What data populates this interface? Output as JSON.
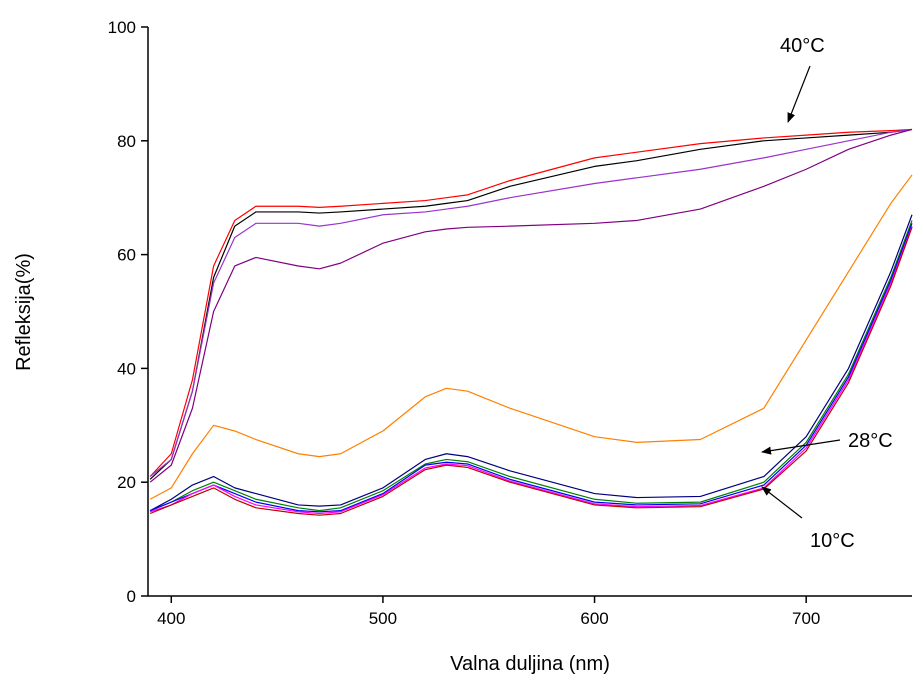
{
  "chart_data": {
    "type": "line",
    "x_label": "Valna duljina (nm)",
    "y_label": "Refleksija(%)",
    "xlim": [
      389,
      750
    ],
    "xticks": [
      400,
      500,
      600,
      700
    ],
    "ylim": [
      0,
      100
    ],
    "yticks": [
      0,
      20,
      40,
      60,
      80,
      100
    ],
    "grid": false,
    "annotations": [
      "40°C",
      "28°C",
      "10°C"
    ],
    "x": [
      390,
      400,
      410,
      420,
      430,
      440,
      460,
      470,
      480,
      500,
      520,
      530,
      540,
      560,
      600,
      620,
      650,
      680,
      700,
      720,
      740,
      750
    ],
    "series": [
      {
        "color": "#ff0000",
        "values": [
          21,
          25,
          38,
          58,
          66,
          68.5,
          68.5,
          68.3,
          68.5,
          69,
          69.5,
          70,
          70.5,
          73,
          77,
          78,
          79.5,
          80.5,
          81,
          81.5,
          81.8,
          82
        ]
      },
      {
        "color": "#000000",
        "values": [
          20.5,
          24,
          36,
          56,
          65,
          67.5,
          67.5,
          67.3,
          67.5,
          68,
          68.5,
          69,
          69.5,
          72,
          75.5,
          76.5,
          78.5,
          80,
          80.5,
          81,
          81.5,
          82
        ]
      },
      {
        "color": "#9933cc",
        "values": [
          21,
          24,
          36,
          55,
          63,
          65.5,
          65.5,
          65,
          65.5,
          67,
          67.5,
          68,
          68.5,
          70,
          72.5,
          73.5,
          75,
          77,
          78.5,
          80,
          81.5,
          82
        ]
      },
      {
        "color": "#800080",
        "values": [
          20,
          23,
          33,
          50,
          58,
          59.5,
          58,
          57.5,
          58.5,
          62,
          64,
          64.5,
          64.8,
          65,
          65.5,
          66,
          68,
          72,
          75,
          78.5,
          81,
          82
        ]
      },
      {
        "color": "#ff8000",
        "values": [
          17,
          19,
          25,
          30,
          29,
          27.5,
          25,
          24.5,
          25,
          29,
          35,
          36.5,
          36,
          33,
          28,
          27,
          27.5,
          33,
          45,
          57,
          69,
          74
        ]
      },
      {
        "color": "#000080",
        "values": [
          15,
          17,
          19.5,
          21,
          19,
          18,
          16,
          15.8,
          16,
          19,
          24,
          25,
          24.5,
          22,
          18,
          17.3,
          17.5,
          21,
          28,
          40,
          57,
          67
        ]
      },
      {
        "color": "#008000",
        "values": [
          15,
          16.5,
          18.5,
          20,
          18.5,
          17,
          15.5,
          15,
          15.5,
          18.5,
          23.2,
          24,
          23.6,
          21,
          17,
          16.3,
          16.5,
          20,
          27,
          39,
          56,
          66
        ]
      },
      {
        "color": "#0000ff",
        "values": [
          15,
          16.5,
          18,
          19.5,
          18,
          16.5,
          15,
          14.8,
          15,
          18,
          23,
          23.5,
          23.2,
          20.5,
          16.5,
          16,
          16.2,
          19.5,
          26.5,
          38.5,
          55.5,
          65.5
        ]
      },
      {
        "color": "#ff00ff",
        "values": [
          14.8,
          16,
          18,
          19.5,
          17.5,
          16,
          14.8,
          14.5,
          14.8,
          17.8,
          22.5,
          23.2,
          22.9,
          20.2,
          16.2,
          15.7,
          15.9,
          19,
          26,
          38,
          55,
          65
        ]
      },
      {
        "color": "#c00000",
        "values": [
          14.5,
          16,
          17.5,
          19,
          17,
          15.5,
          14.5,
          14.2,
          14.5,
          17.5,
          22.2,
          23,
          22.6,
          20,
          16,
          15.5,
          15.7,
          18.8,
          25.5,
          37.5,
          54.5,
          64.8
        ]
      }
    ]
  }
}
